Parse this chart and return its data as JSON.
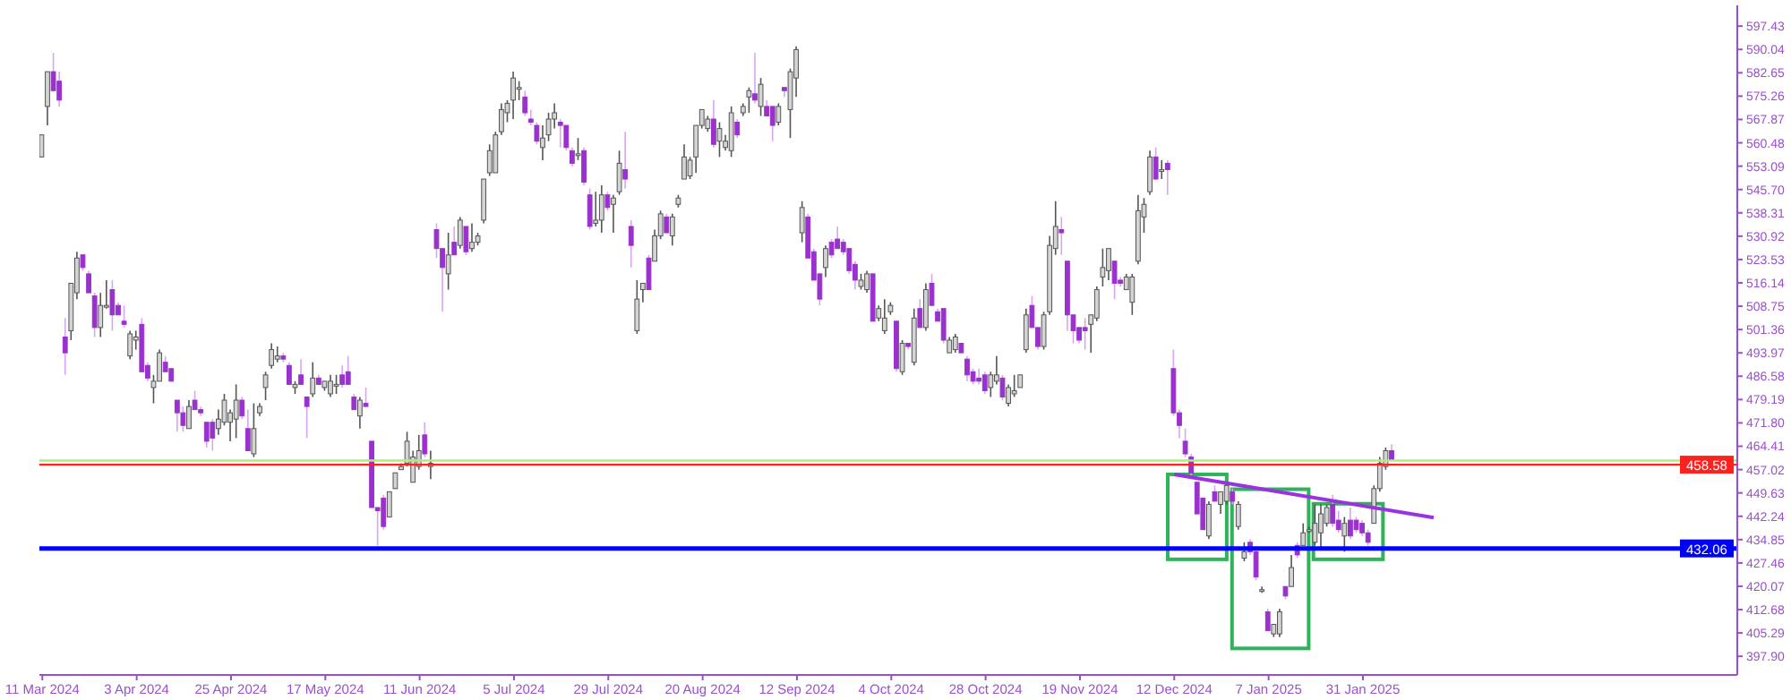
{
  "chart_data": {
    "type": "candlestick",
    "categories": [
      "11 Mar 2024",
      null,
      null,
      null,
      null,
      null,
      null,
      null,
      null,
      null,
      null,
      null,
      null,
      null,
      null,
      null,
      "3 Apr 2024",
      null,
      null,
      null,
      null,
      null,
      null,
      null,
      null,
      null,
      null,
      null,
      null,
      null,
      null,
      null,
      "25 Apr 2024",
      null,
      null,
      null,
      null,
      null,
      null,
      null,
      null,
      null,
      null,
      null,
      null,
      null,
      null,
      null,
      "17 May 2024",
      null,
      null,
      null,
      null,
      null,
      null,
      null,
      null,
      null,
      null,
      null,
      null,
      null,
      null,
      null,
      "11 Jun 2024",
      null,
      null,
      null,
      null,
      null,
      null,
      null,
      null,
      null,
      null,
      null,
      null,
      null,
      null,
      null,
      "5 Jul 2024",
      null,
      null,
      null,
      null,
      null,
      null,
      null,
      null,
      null,
      null,
      null,
      null,
      null,
      null,
      null,
      "29 Jul 2024",
      null,
      null,
      null,
      null,
      null,
      null,
      null,
      null,
      null,
      null,
      null,
      null,
      null,
      null,
      null,
      "20 Aug 2024",
      null,
      null,
      null,
      null,
      null,
      null,
      null,
      null,
      null,
      null,
      null,
      null,
      null,
      null,
      null,
      "12 Sep 2024",
      null,
      null,
      null,
      null,
      null,
      null,
      null,
      null,
      null,
      null,
      null,
      null,
      null,
      null,
      null,
      "4 Oct 2024",
      null,
      null,
      null,
      null,
      null,
      null,
      null,
      null,
      null,
      null,
      null,
      null,
      null,
      null,
      null,
      "28 Oct 2024",
      null,
      null,
      null,
      null,
      null,
      null,
      null,
      null,
      null,
      null,
      null,
      null,
      null,
      null,
      null,
      "19 Nov 2024",
      null,
      null,
      null,
      null,
      null,
      null,
      null,
      null,
      null,
      null,
      null,
      null,
      null,
      null,
      null,
      "12 Dec 2024",
      null,
      null,
      null,
      null,
      null,
      null,
      null,
      null,
      null,
      null,
      null,
      null,
      null,
      null,
      null,
      "7 Jan 2025",
      null,
      null,
      null,
      null,
      null,
      null,
      null,
      null,
      null,
      null,
      null,
      null,
      null,
      null,
      null,
      "31 Jan 2025",
      null,
      null,
      null,
      null,
      null,
      null,
      null,
      null,
      null,
      null,
      null,
      null,
      null,
      null,
      null,
      null,
      null,
      null,
      null,
      null,
      null,
      null,
      null,
      null,
      null,
      null,
      null,
      null,
      null,
      null,
      null,
      null,
      null,
      null,
      null,
      null,
      null,
      null,
      null,
      null,
      null,
      null,
      null,
      null,
      null,
      null,
      null,
      null,
      null,
      null,
      null,
      null,
      null,
      null,
      null,
      null,
      null,
      null,
      null,
      null,
      null,
      null,
      null
    ],
    "ohlc": [
      [
        556,
        563,
        556,
        563
      ],
      [
        572,
        583,
        566,
        583
      ],
      [
        583,
        589,
        577,
        577
      ],
      [
        580,
        583,
        572,
        574
      ],
      [
        499,
        505,
        487,
        494
      ],
      [
        501,
        516,
        498,
        516
      ],
      [
        513,
        526,
        511,
        524
      ],
      [
        525,
        525,
        520,
        521
      ],
      [
        519,
        520,
        513,
        513
      ],
      [
        512,
        513,
        499,
        502
      ],
      [
        502,
        513,
        499,
        509
      ],
      [
        509,
        517,
        508,
        509
      ],
      [
        514,
        517,
        501,
        506
      ],
      [
        509,
        510,
        506,
        506
      ],
      [
        504,
        509,
        502,
        503
      ],
      [
        493,
        501,
        492,
        500
      ],
      [
        498,
        501,
        495,
        499
      ],
      [
        503,
        505,
        488,
        488
      ],
      [
        490,
        491,
        485,
        486
      ],
      [
        483,
        487,
        478,
        485
      ],
      [
        485,
        495,
        485,
        494
      ],
      [
        491,
        493,
        488,
        488
      ],
      [
        489,
        489,
        485,
        485
      ],
      [
        479,
        479,
        469,
        475
      ],
      [
        475,
        477,
        469,
        471
      ],
      [
        470,
        479,
        470,
        477
      ],
      [
        479,
        482,
        476,
        476
      ],
      [
        476,
        477,
        474,
        475
      ],
      [
        472,
        472,
        464,
        466
      ],
      [
        472,
        473,
        463,
        467
      ],
      [
        470,
        476,
        468,
        473
      ],
      [
        472,
        481,
        471,
        479
      ],
      [
        472,
        476,
        466,
        475
      ],
      [
        473,
        484,
        467,
        479
      ],
      [
        479,
        480,
        473,
        474
      ],
      [
        470,
        476,
        463,
        463
      ],
      [
        462,
        478,
        461,
        470
      ],
      [
        475,
        478,
        474,
        477
      ],
      [
        483,
        488,
        479,
        487
      ],
      [
        490,
        497,
        489,
        495
      ],
      [
        492,
        496,
        491,
        493
      ],
      [
        493,
        494,
        491,
        492
      ],
      [
        490,
        491,
        484,
        484
      ],
      [
        483,
        485,
        481,
        484
      ],
      [
        487,
        492,
        484,
        484
      ],
      [
        480,
        480,
        467,
        477
      ],
      [
        481,
        491,
        480,
        486
      ],
      [
        486,
        487,
        484,
        484
      ],
      [
        483,
        485,
        482,
        485
      ],
      [
        481,
        487,
        480,
        485
      ],
      [
        484,
        487,
        481,
        484
      ],
      [
        487,
        490,
        483,
        484
      ],
      [
        488,
        493,
        484,
        484
      ],
      [
        480,
        481,
        476,
        476
      ],
      [
        474,
        480,
        470,
        479
      ],
      [
        478,
        483,
        477,
        477
      ],
      [
        466,
        466,
        445,
        445
      ],
      [
        445,
        445,
        433,
        444
      ],
      [
        448,
        449,
        438,
        439
      ],
      [
        442,
        450,
        442,
        450
      ],
      [
        451,
        456,
        451,
        456
      ],
      [
        457,
        459,
        457,
        458
      ],
      [
        459,
        469,
        458,
        466
      ],
      [
        453,
        463,
        453,
        461
      ],
      [
        458,
        468,
        457,
        463
      ],
      [
        468,
        472,
        461,
        462
      ],
      [
        458,
        463,
        454,
        459
      ],
      [
        533,
        535,
        524,
        527
      ],
      [
        527,
        527,
        507,
        521
      ],
      [
        519,
        532,
        514,
        525
      ],
      [
        529,
        534,
        525,
        525
      ],
      [
        528,
        537,
        527,
        536
      ],
      [
        534,
        534,
        525,
        526
      ],
      [
        527,
        535,
        526,
        529
      ],
      [
        529,
        532,
        528,
        531
      ],
      [
        536,
        549,
        535,
        549
      ],
      [
        551,
        560,
        550,
        558
      ],
      [
        551,
        564,
        551,
        563
      ],
      [
        564,
        573,
        563,
        571
      ],
      [
        570,
        574,
        567,
        573
      ],
      [
        574,
        583,
        568,
        581
      ],
      [
        578,
        580,
        574,
        578
      ],
      [
        575,
        577,
        569,
        570
      ],
      [
        568,
        571,
        566,
        567
      ],
      [
        566,
        567,
        560,
        561
      ],
      [
        559,
        566,
        555,
        562
      ],
      [
        563,
        570,
        561,
        568
      ],
      [
        568,
        573,
        565,
        570
      ],
      [
        567,
        568,
        559,
        566
      ],
      [
        566,
        566,
        558,
        559
      ],
      [
        558,
        559,
        553,
        554
      ],
      [
        557,
        562,
        555,
        557
      ],
      [
        558,
        559,
        547,
        548
      ],
      [
        544,
        546,
        533,
        534
      ],
      [
        535,
        545,
        534,
        536
      ],
      [
        536,
        547,
        532,
        544
      ],
      [
        544,
        545,
        539,
        540
      ],
      [
        541,
        544,
        532,
        543
      ],
      [
        545,
        558,
        544,
        554
      ],
      [
        552,
        564,
        546,
        549
      ],
      [
        534,
        536,
        521,
        528
      ],
      [
        501,
        517,
        500,
        511
      ],
      [
        514,
        516,
        510,
        516
      ],
      [
        524,
        525,
        514,
        514
      ],
      [
        523,
        533,
        523,
        531
      ],
      [
        531,
        539,
        530,
        538
      ],
      [
        537,
        538,
        532,
        532
      ],
      [
        531,
        538,
        528,
        537
      ],
      [
        541,
        544,
        540,
        543
      ],
      [
        549,
        560,
        549,
        556
      ],
      [
        550,
        556,
        549,
        555
      ],
      [
        556,
        566,
        551,
        566
      ],
      [
        566,
        571,
        565,
        571
      ],
      [
        565,
        569,
        564,
        568
      ],
      [
        568,
        574,
        559,
        560
      ],
      [
        561,
        567,
        556,
        565
      ],
      [
        559,
        563,
        558,
        561
      ],
      [
        558,
        572,
        556,
        570
      ],
      [
        567,
        568,
        562,
        563
      ],
      [
        570,
        573,
        569,
        572
      ],
      [
        575,
        578,
        570,
        577
      ],
      [
        576,
        589,
        573,
        574
      ],
      [
        572,
        581,
        569,
        579
      ],
      [
        572,
        574,
        569,
        569
      ],
      [
        572,
        572,
        561,
        566
      ],
      [
        567,
        573,
        566,
        572
      ],
      [
        578,
        578,
        575,
        577
      ],
      [
        571,
        584,
        562,
        583
      ],
      [
        581,
        591,
        575,
        590
      ],
      [
        532,
        542,
        529,
        540
      ],
      [
        537,
        538,
        524,
        524
      ],
      [
        526,
        527,
        517,
        517
      ],
      [
        519,
        519,
        509,
        511
      ],
      [
        521,
        528,
        518,
        527
      ],
      [
        529,
        530,
        524,
        525
      ],
      [
        530,
        534,
        527,
        527
      ],
      [
        529,
        530,
        525,
        526
      ],
      [
        527,
        527,
        519,
        520
      ],
      [
        522,
        523,
        514,
        517
      ],
      [
        515,
        519,
        514,
        517
      ],
      [
        514,
        520,
        513,
        519
      ],
      [
        519,
        519,
        504,
        504
      ],
      [
        505,
        509,
        504,
        508
      ],
      [
        501,
        511,
        500,
        505
      ],
      [
        507,
        510,
        506,
        509
      ],
      [
        504,
        504,
        488,
        489
      ],
      [
        488,
        498,
        487,
        497
      ],
      [
        497,
        497,
        495,
        496
      ],
      [
        491,
        508,
        490,
        505
      ],
      [
        508,
        511,
        502,
        502
      ],
      [
        502,
        516,
        501,
        514
      ],
      [
        516,
        519,
        509,
        509
      ],
      [
        507,
        508,
        504,
        504
      ],
      [
        508,
        508,
        497,
        498
      ],
      [
        494,
        499,
        494,
        498
      ],
      [
        495,
        500,
        494,
        499
      ],
      [
        497,
        497,
        494,
        494
      ],
      [
        492,
        493,
        485,
        487
      ],
      [
        488,
        489,
        484,
        485
      ],
      [
        486,
        489,
        484,
        485
      ],
      [
        487,
        488,
        481,
        482
      ],
      [
        483,
        488,
        480,
        487
      ],
      [
        485,
        493,
        484,
        487
      ],
      [
        486,
        487,
        479,
        480
      ],
      [
        478,
        484,
        477,
        483
      ],
      [
        481,
        487,
        480,
        482
      ],
      [
        483,
        487,
        483,
        487
      ],
      [
        495,
        508,
        494,
        506
      ],
      [
        509,
        512,
        502,
        502
      ],
      [
        502,
        502,
        495,
        496
      ],
      [
        496,
        507,
        495,
        506
      ],
      [
        507,
        531,
        506,
        528
      ],
      [
        527,
        542,
        525,
        534
      ],
      [
        533,
        537,
        525,
        532
      ],
      [
        523,
        523,
        501,
        506
      ],
      [
        506,
        506,
        497,
        501
      ],
      [
        502,
        502,
        497,
        498
      ],
      [
        502,
        505,
        495,
        501
      ],
      [
        503,
        506,
        494,
        506
      ],
      [
        505,
        515,
        504,
        514
      ],
      [
        518,
        527,
        515,
        521
      ],
      [
        520,
        527,
        517,
        527
      ],
      [
        523,
        523,
        511,
        516
      ],
      [
        517,
        518,
        515,
        516
      ],
      [
        514,
        519,
        514,
        518
      ],
      [
        510,
        519,
        506,
        518
      ],
      [
        523,
        544,
        522,
        539
      ],
      [
        537,
        543,
        532,
        541
      ],
      [
        545,
        558,
        544,
        556
      ],
      [
        556,
        559,
        549,
        549
      ],
      [
        552,
        555,
        549,
        552
      ],
      [
        554,
        555,
        544,
        552
      ],
      [
        489,
        495,
        474,
        475
      ],
      [
        475,
        476,
        467,
        471
      ],
      [
        466,
        470,
        461,
        462
      ],
      [
        461,
        462,
        455,
        456
      ],
      [
        453,
        453,
        443,
        443
      ],
      [
        448,
        448,
        438,
        438
      ],
      [
        436,
        447,
        435,
        446
      ],
      [
        450,
        452,
        447,
        447
      ],
      [
        446,
        450,
        443,
        450
      ],
      [
        447,
        453,
        446,
        452
      ],
      [
        450,
        451,
        446,
        447
      ],
      [
        439,
        447,
        438,
        446
      ],
      [
        429,
        434,
        428,
        431
      ],
      [
        434,
        435,
        430,
        431
      ],
      [
        431,
        432,
        422,
        423
      ],
      [
        419,
        420,
        418,
        419
      ],
      [
        412,
        413,
        406,
        406
      ],
      [
        405,
        408,
        404,
        408
      ],
      [
        405,
        413,
        404,
        412
      ],
      [
        420,
        420,
        416,
        417
      ],
      [
        420,
        430,
        420,
        426
      ],
      [
        433,
        434,
        429,
        430
      ],
      [
        433,
        440,
        433,
        437
      ],
      [
        438,
        439,
        437,
        438
      ],
      [
        434,
        446,
        433,
        440
      ],
      [
        437,
        446,
        432,
        443
      ],
      [
        440,
        446,
        439,
        445
      ],
      [
        446,
        449,
        439,
        440
      ],
      [
        441,
        444,
        437,
        438
      ],
      [
        436,
        442,
        431,
        440
      ],
      [
        441,
        445,
        435,
        436
      ],
      [
        441,
        442,
        437,
        438
      ],
      [
        440,
        441,
        436,
        437
      ],
      [
        437,
        438,
        433,
        434
      ],
      [
        440,
        452,
        440,
        451
      ],
      [
        451,
        461,
        450,
        459
      ],
      [
        458,
        464,
        457,
        463
      ],
      [
        463,
        465,
        460,
        460
      ],
      null,
      null,
      null,
      null,
      null,
      null,
      null,
      null,
      null,
      null,
      null,
      null,
      null,
      null,
      null,
      null,
      null,
      null,
      null,
      null,
      null,
      null,
      null,
      null,
      null,
      null,
      null,
      null,
      null,
      null,
      null,
      null,
      null,
      null,
      null,
      null,
      null,
      null,
      null,
      null,
      null,
      null,
      null,
      null,
      null,
      null,
      null,
      null,
      null,
      null,
      null,
      null,
      null,
      null,
      null,
      null,
      null,
      null
    ],
    "series": [
      {
        "type": "line",
        "color": "#9932e0",
        "values": [
          null,
          null,
          null,
          null,
          null,
          null,
          null,
          null,
          null,
          null,
          null,
          null,
          null,
          null,
          null,
          null,
          null,
          null,
          null,
          null,
          null,
          null,
          null,
          null,
          null,
          null,
          null,
          null,
          null,
          null,
          null,
          null,
          null,
          null,
          null,
          null,
          null,
          null,
          null,
          null,
          null,
          null,
          null,
          null,
          null,
          null,
          null,
          null,
          null,
          null,
          null,
          null,
          null,
          null,
          null,
          null,
          null,
          null,
          null,
          null,
          null,
          null,
          null,
          null,
          null,
          null,
          null,
          null,
          null,
          null,
          null,
          null,
          null,
          null,
          null,
          null,
          null,
          null,
          null,
          null,
          null,
          null,
          null,
          null,
          null,
          null,
          null,
          null,
          null,
          null,
          null,
          null,
          null,
          null,
          null,
          null,
          null,
          null,
          null,
          null,
          null,
          null,
          null,
          null,
          null,
          null,
          null,
          null,
          null,
          null,
          null,
          null,
          null,
          null,
          null,
          null,
          null,
          null,
          null,
          null,
          null,
          null,
          null,
          null,
          null,
          null,
          null,
          null,
          null,
          null,
          null,
          null,
          null,
          null,
          null,
          null,
          null,
          null,
          null,
          null,
          null,
          null,
          null,
          null,
          null,
          null,
          null,
          null,
          null,
          null,
          null,
          null,
          null,
          null,
          null,
          null,
          null,
          null,
          null,
          null,
          null,
          null,
          null,
          null,
          null,
          null,
          null,
          null,
          null,
          null,
          null,
          null,
          null,
          null,
          null,
          null,
          null,
          null,
          null,
          null,
          null,
          null,
          null,
          null,
          null,
          null,
          null,
          null,
          null,
          null,
          null,
          null,
          455.5,
          null,
          null,
          null,
          null,
          null,
          null,
          null,
          null,
          null,
          null,
          null,
          null,
          null,
          null,
          null,
          null,
          null,
          null,
          null,
          null,
          null,
          null,
          null,
          null,
          null,
          null,
          null,
          null,
          null,
          null,
          null,
          null,
          null,
          null,
          null,
          null,
          null,
          null,
          null,
          null,
          null,
          null,
          null,
          441.8,
          null,
          null,
          null,
          null,
          null,
          null,
          null,
          null,
          null,
          null,
          null,
          null,
          null,
          null,
          null,
          null,
          null,
          null,
          null,
          null,
          null,
          null,
          null,
          null,
          null,
          null,
          null,
          null,
          null,
          null,
          null,
          null,
          null,
          null,
          null,
          null,
          null,
          null,
          null,
          null,
          null,
          null,
          null,
          null,
          null,
          null,
          null,
          null,
          null,
          null,
          null
        ]
      }
    ],
    "ylim": [
      392,
      604
    ],
    "yticks": [
      597.43,
      590.04,
      582.65,
      575.26,
      567.87,
      560.48,
      553.09,
      {
        "value": 545.7,
        "label": "545.70"
      },
      538.31,
      530.92,
      523.53,
      516.14,
      508.75,
      501.36,
      493.97,
      486.58,
      479.19,
      {
        "value": 471.8,
        "label": "471.80"
      },
      464.41,
      457.02,
      449.63,
      442.24,
      434.85,
      427.46,
      420.07,
      412.68,
      405.29,
      {
        "value": 397.9,
        "label": "397.90"
      }
    ],
    "ref_lines": [
      {
        "axis": "y",
        "value": 459.9,
        "color": "#a8f07a"
      },
      {
        "axis": "y",
        "value": 458.58,
        "label": "458.58",
        "color": "#ff2020"
      },
      {
        "axis": "y",
        "value": 432.06,
        "label": "432.06",
        "color": "#0000ff"
      }
    ]
  }
}
